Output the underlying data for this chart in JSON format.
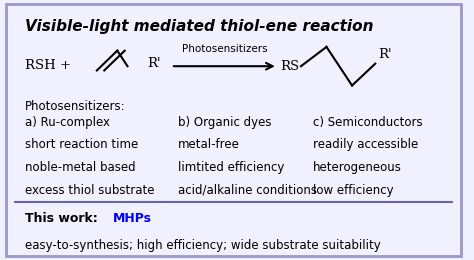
{
  "title": "Visible-light mediated thiol-ene reaction",
  "bg_color": "#f0f0ff",
  "border_color": "#9999cc",
  "title_color": "#000000",
  "title_fontsize": 11,
  "reactant_text": "RSH +",
  "photosens_label": "Photosensitizers",
  "product_prefix": "RS",
  "rprime": "R'",
  "section_a_title": "a) Ru-complex",
  "section_a_lines": [
    "short reaction time",
    "noble-metal based",
    "excess thiol substrate"
  ],
  "section_b_title": "b) Organic dyes",
  "section_b_lines": [
    "metal-free",
    "limtited efficiency",
    "acid/alkaline conditions"
  ],
  "section_c_title": "c) Semiconductors",
  "section_c_lines": [
    "readily accessible",
    "heterogeneous",
    "low efficiency"
  ],
  "photosens_header": "Photosensitizers:",
  "this_work_prefix": "This work: ",
  "this_work_highlight": "MHPs",
  "this_work_color": "#0000ff",
  "this_work_bottom": "easy-to-synthesis; high efficiency; wide substrate suitability",
  "divider_color": "#6666aa",
  "text_color": "#000000",
  "body_fontsize": 8.5
}
